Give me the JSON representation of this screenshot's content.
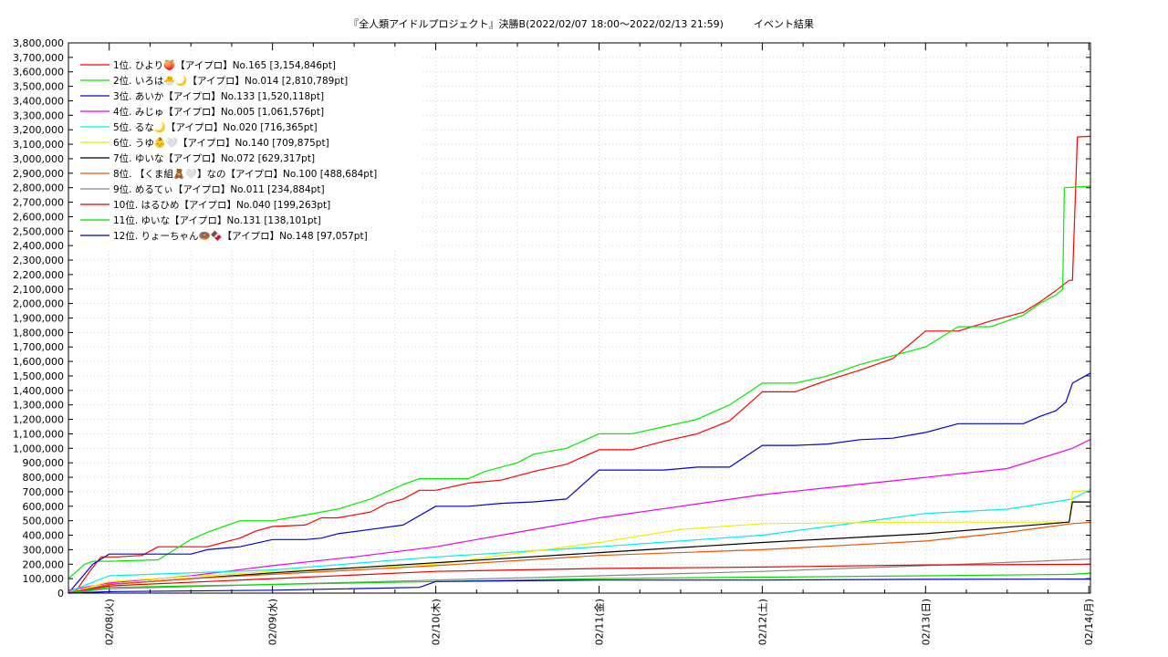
{
  "chart_data": {
    "type": "line",
    "title": "『全人類アイドルプロジェクト』決勝B(2022/02/07 18:00～2022/02/13 21:59)　　　イベント結果",
    "xlabel": "",
    "ylabel": "",
    "ylim": [
      0,
      3800000
    ],
    "y_ticks": [
      "0",
      "100,000",
      "200,000",
      "300,000",
      "400,000",
      "500,000",
      "600,000",
      "700,000",
      "800,000",
      "900,000",
      "1,000,000",
      "1,100,000",
      "1,200,000",
      "1,300,000",
      "1,400,000",
      "1,500,000",
      "1,600,000",
      "1,700,000",
      "1,800,000",
      "1,900,000",
      "2,000,000",
      "2,100,000",
      "2,200,000",
      "2,300,000",
      "2,400,000",
      "2,500,000",
      "2,600,000",
      "2,700,000",
      "2,800,000",
      "2,900,000",
      "3,000,000",
      "3,100,000",
      "3,200,000",
      "3,300,000",
      "3,400,000",
      "3,500,000",
      "3,600,000",
      "3,700,000",
      "3,800,000"
    ],
    "x_ticks": [
      "02/08(火)",
      "02/09(水)",
      "02/10(木)",
      "02/11(金)",
      "02/12(土)",
      "02/13(日)",
      "02/14(月)"
    ],
    "xlim": [
      -0.25,
      6.01
    ],
    "grid": true,
    "legend_position": "top-left",
    "series": [
      {
        "name": "1位. ひより🍑【アイプロ】No.165 [3,154,846pt]",
        "color": "#ff0000",
        "x": [
          -0.25,
          -0.2,
          -0.12,
          -0.05,
          0,
          0.05,
          0.2,
          0.3,
          0.4,
          0.5,
          0.6,
          0.8,
          0.9,
          1,
          1.2,
          1.3,
          1.4,
          1.6,
          1.7,
          1.8,
          1.9,
          2,
          2.2,
          2.4,
          2.6,
          2.8,
          3,
          3.2,
          3.4,
          3.6,
          3.8,
          4,
          4.2,
          4.4,
          4.6,
          4.8,
          5,
          5.2,
          5.4,
          5.6,
          5.7,
          5.8,
          5.88,
          5.9,
          5.93,
          6.01
        ],
        "y": [
          0,
          20000,
          150000,
          250000,
          250000,
          250000,
          260000,
          320000,
          320000,
          320000,
          320000,
          380000,
          430000,
          460000,
          470000,
          520000,
          520000,
          560000,
          620000,
          650000,
          710000,
          710000,
          760000,
          780000,
          840000,
          890000,
          990000,
          990000,
          1050000,
          1100000,
          1190000,
          1390000,
          1390000,
          1470000,
          1540000,
          1620000,
          1810000,
          1810000,
          1880000,
          1940000,
          2010000,
          2090000,
          2160000,
          2160000,
          3150000,
          3154846
        ]
      },
      {
        "name": "2位. いろは🐣🌙【アイプロ】No.014 [2,810,789pt]",
        "color": "#00ee00",
        "x": [
          -0.25,
          -0.15,
          -0.1,
          0,
          0.3,
          0.4,
          0.5,
          0.6,
          0.7,
          0.8,
          1,
          1.1,
          1.3,
          1.4,
          1.6,
          1.7,
          1.8,
          1.9,
          2,
          2.2,
          2.3,
          2.5,
          2.6,
          2.8,
          3,
          3.2,
          3.4,
          3.6,
          3.7,
          3.8,
          4,
          4.2,
          4.4,
          4.6,
          4.8,
          5,
          5.2,
          5.4,
          5.5,
          5.6,
          5.7,
          5.8,
          5.84,
          5.85,
          6.01
        ],
        "y": [
          100000,
          200000,
          220000,
          220000,
          230000,
          300000,
          370000,
          420000,
          460000,
          500000,
          500000,
          520000,
          560000,
          580000,
          650000,
          700000,
          750000,
          790000,
          790000,
          790000,
          840000,
          900000,
          960000,
          1000000,
          1100000,
          1100000,
          1150000,
          1200000,
          1250000,
          1300000,
          1450000,
          1450000,
          1500000,
          1580000,
          1640000,
          1700000,
          1840000,
          1840000,
          1880000,
          1920000,
          2000000,
          2060000,
          2100000,
          2800000,
          2810789
        ]
      },
      {
        "name": "3位. あいか【アイプロ】No.133 [1,520,118pt]",
        "color": "#0000dd",
        "x": [
          -0.25,
          -0.1,
          0,
          0.5,
          0.6,
          0.8,
          1,
          1.2,
          1.3,
          1.4,
          1.6,
          1.8,
          2,
          2.2,
          2.4,
          2.6,
          2.8,
          2.95,
          3,
          3.2,
          3.4,
          3.6,
          3.8,
          4,
          4.2,
          4.4,
          4.6,
          4.8,
          5,
          5.2,
          5.4,
          5.6,
          5.7,
          5.8,
          5.86,
          5.9,
          6.01
        ],
        "y": [
          0,
          200000,
          270000,
          270000,
          300000,
          320000,
          370000,
          370000,
          380000,
          410000,
          440000,
          470000,
          600000,
          600000,
          620000,
          630000,
          650000,
          800000,
          850000,
          850000,
          850000,
          870000,
          870000,
          1020000,
          1020000,
          1030000,
          1060000,
          1070000,
          1110000,
          1170000,
          1170000,
          1170000,
          1220000,
          1260000,
          1320000,
          1450000,
          1520118
        ]
      },
      {
        "name": "4位. みじゅ【アイプロ】No.005 [1,061,576pt]",
        "color": "#ee00ee",
        "x": [
          -0.25,
          0,
          0.5,
          1,
          1.5,
          2,
          2.5,
          3,
          3.5,
          4,
          4.5,
          5,
          5.5,
          5.9,
          6.01
        ],
        "y": [
          20000,
          70000,
          120000,
          190000,
          250000,
          320000,
          420000,
          520000,
          600000,
          680000,
          740000,
          800000,
          860000,
          1000000,
          1061576
        ]
      },
      {
        "name": "5位. るな🌙【アイプロ】No.020 [716,365pt]",
        "color": "#00eeee",
        "x": [
          -0.25,
          0,
          1,
          2,
          3,
          4,
          5,
          5.5,
          5.9,
          6.01
        ],
        "y": [
          10000,
          120000,
          160000,
          250000,
          320000,
          400000,
          550000,
          580000,
          650000,
          716365
        ]
      },
      {
        "name": "6位. うゆ👶🤍【アイプロ】No.140 [709,875pt]",
        "color": "#eeee00",
        "x": [
          -0.25,
          0,
          1,
          2,
          3,
          3.5,
          4,
          5,
          5.88,
          5.9,
          6.01
        ],
        "y": [
          0,
          80000,
          150000,
          200000,
          350000,
          440000,
          480000,
          490000,
          490000,
          700000,
          709875
        ]
      },
      {
        "name": "7位. ゆいな【アイプロ】No.072 [629,317pt]",
        "color": "#000000",
        "x": [
          -0.25,
          0,
          1,
          2,
          3,
          4,
          5,
          5.88,
          5.9,
          6.01
        ],
        "y": [
          0,
          60000,
          140000,
          210000,
          280000,
          350000,
          410000,
          490000,
          630000,
          629317
        ]
      },
      {
        "name": "8位. 【くま組🧸🤍】なの【アイプロ】No.100 [488,684pt]",
        "color": "#ee5500",
        "x": [
          -0.25,
          0,
          0.5,
          1,
          2,
          3,
          4,
          5,
          5.5,
          5.9,
          6.01
        ],
        "y": [
          0,
          60000,
          100000,
          130000,
          190000,
          260000,
          300000,
          360000,
          420000,
          480000,
          488684
        ]
      },
      {
        "name": "9位. めるてぃ【アイプロ】No.011 [234,884pt]",
        "color": "#888888",
        "x": [
          -0.25,
          0,
          1,
          2,
          3,
          4,
          5,
          6.01
        ],
        "y": [
          0,
          30000,
          60000,
          90000,
          120000,
          150000,
          190000,
          234884
        ]
      },
      {
        "name": "10位. はるひめ【アイプロ】No.040 [199,263pt]",
        "color": "#ee0000",
        "x": [
          -0.25,
          0,
          1,
          2,
          3,
          4,
          5,
          6.01
        ],
        "y": [
          0,
          50000,
          100000,
          150000,
          170000,
          180000,
          195000,
          199263
        ]
      },
      {
        "name": "11位. ゆいな【アイプロ】No.131 [138,101pt]",
        "color": "#00dd00",
        "x": [
          -0.25,
          0,
          1,
          2,
          3,
          4,
          5,
          5.9,
          6.01
        ],
        "y": [
          0,
          40000,
          60000,
          80000,
          100000,
          110000,
          120000,
          130000,
          138101
        ]
      },
      {
        "name": "12位. りょーちゃん🍩🍫【アイプロ】No.148 [97,057pt]",
        "color": "#0000cc",
        "x": [
          -0.25,
          0,
          1,
          1.9,
          2,
          3,
          4,
          5,
          6.01
        ],
        "y": [
          0,
          10000,
          20000,
          40000,
          80000,
          90000,
          90000,
          95000,
          97057
        ]
      }
    ]
  }
}
